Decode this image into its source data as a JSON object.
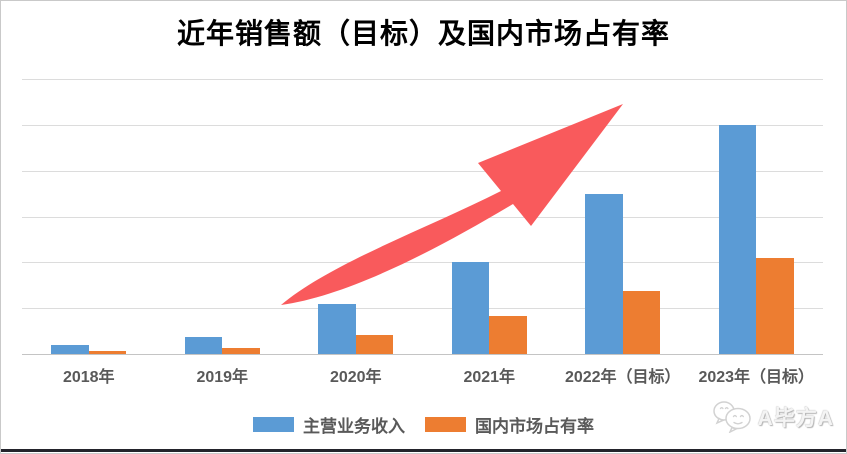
{
  "title": "近年销售额（目标）及国内市场占有率",
  "watermark": {
    "icon": "wechat-icon",
    "text": "A毕方A"
  },
  "page": {
    "background": "#ffffff",
    "border_color": "#c9c9c9",
    "bottom_rule_color": "#23232b",
    "gridline_color": "#dcdcdc",
    "axis_line_color": "#c4c4c4",
    "label_color": "#595959"
  },
  "chart_data": {
    "type": "bar",
    "title": "近年销售额（目标）及国内市场占有率",
    "categories": [
      "2018年",
      "2019年",
      "2020年",
      "2021年",
      "2022年（目标）",
      "2023年（目标）"
    ],
    "series": [
      {
        "name": "主营业务收入",
        "color": "#5B9BD5",
        "values": [
          0.2,
          0.37,
          1.1,
          2.0,
          3.5,
          5.0
        ]
      },
      {
        "name": "国内市场占有率",
        "color": "#ED7D31",
        "values": [
          0.07,
          0.13,
          0.42,
          0.83,
          1.38,
          2.1
        ]
      }
    ],
    "value_note": "no y-axis tick labels visible; values estimated in gridline units",
    "xlabel": "",
    "ylabel": "",
    "ylim": [
      0,
      6
    ],
    "gridline_interval": 1,
    "grid": true,
    "y_axis_labels_visible": false,
    "legend_position": "bottom",
    "annotation_arrow": {
      "shape": "curved-up-growth-arrow",
      "color": "#F95A5C"
    }
  }
}
